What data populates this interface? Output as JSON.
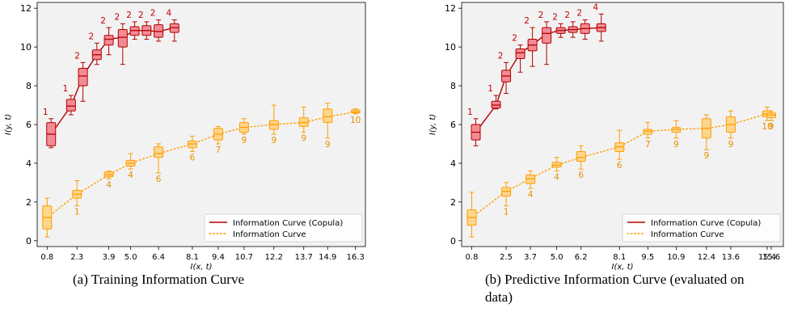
{
  "captions": {
    "a": "(a) Training Information Curve",
    "b_line1": "(b) Predictive Information Curve (evaluated on",
    "b_line2": "data)"
  },
  "colors": {
    "copula_line": "#b30000",
    "copula_box_fill": "#f38b94",
    "copula_label": "#c00000",
    "info_line": "#ff9d00",
    "info_box_fill": "#fed68d",
    "info_label": "#e69000",
    "plot_bg": "#f2f2f2"
  },
  "chart_data": [
    {
      "type": "box",
      "xlabel": "I(x, t)",
      "ylabel": "I(y, t)",
      "ylim": [
        -0.3,
        12.3
      ],
      "yticks": [
        0,
        2,
        4,
        6,
        8,
        10,
        12
      ],
      "xlim": [
        0.3,
        16.8
      ],
      "xticks": [
        0.8,
        2.3,
        3.9,
        5.0,
        6.4,
        8.1,
        9.4,
        10.7,
        12.2,
        13.7,
        14.9,
        16.3
      ],
      "xtick_labels": [
        "0.8",
        "2.3",
        "3.9",
        "5.0",
        "6.4",
        "8.1",
        "9.4",
        "10.7",
        "12.2",
        "13.7",
        "14.9",
        "16.3"
      ],
      "legend": {
        "position": "bottom-right",
        "entries": [
          "Information Curve (Copula)",
          "Information Curve"
        ]
      },
      "series": [
        {
          "name": "Information Curve (Copula)",
          "style": "solid",
          "boxes": [
            {
              "x": 1.0,
              "whislo": 4.8,
              "q1": 4.9,
              "med": 5.5,
              "q3": 6.1,
              "whishi": 6.3,
              "label": "1"
            },
            {
              "x": 2.0,
              "whislo": 6.5,
              "q1": 6.7,
              "med": 6.95,
              "q3": 7.3,
              "whishi": 7.5,
              "label": "1"
            },
            {
              "x": 2.6,
              "whislo": 7.2,
              "q1": 8.0,
              "med": 8.5,
              "q3": 8.9,
              "whishi": 9.2,
              "label": "2"
            },
            {
              "x": 3.3,
              "whislo": 9.1,
              "q1": 9.35,
              "med": 9.6,
              "q3": 9.85,
              "whishi": 10.2,
              "label": "2"
            },
            {
              "x": 3.9,
              "whislo": 9.6,
              "q1": 10.1,
              "med": 10.4,
              "q3": 10.6,
              "whishi": 11.0,
              "label": "2"
            },
            {
              "x": 4.6,
              "whislo": 9.1,
              "q1": 10.0,
              "med": 10.5,
              "q3": 10.9,
              "whishi": 11.2,
              "label": "2"
            },
            {
              "x": 5.2,
              "whislo": 10.4,
              "q1": 10.6,
              "med": 10.85,
              "q3": 11.05,
              "whishi": 11.3,
              "label": "2"
            },
            {
              "x": 5.8,
              "whislo": 10.4,
              "q1": 10.6,
              "med": 10.85,
              "q3": 11.1,
              "whishi": 11.3,
              "label": "2"
            },
            {
              "x": 6.4,
              "whislo": 10.3,
              "q1": 10.5,
              "med": 10.8,
              "q3": 11.15,
              "whishi": 11.4,
              "label": "2"
            },
            {
              "x": 7.2,
              "whislo": 10.3,
              "q1": 10.75,
              "med": 11.0,
              "q3": 11.2,
              "whishi": 11.4,
              "label": "4"
            }
          ]
        },
        {
          "name": "Information Curve",
          "style": "dotted",
          "boxes": [
            {
              "x": 0.8,
              "whislo": 0.2,
              "q1": 0.6,
              "med": 1.2,
              "q3": 1.8,
              "whishi": 2.2,
              "label": ""
            },
            {
              "x": 2.3,
              "whislo": 1.8,
              "q1": 2.2,
              "med": 2.4,
              "q3": 2.6,
              "whishi": 3.1,
              "label": "1"
            },
            {
              "x": 3.9,
              "whislo": 3.2,
              "q1": 3.3,
              "med": 3.4,
              "q3": 3.55,
              "whishi": 3.6,
              "label": "4"
            },
            {
              "x": 5.0,
              "whislo": 3.7,
              "q1": 3.85,
              "med": 4.0,
              "q3": 4.15,
              "whishi": 4.5,
              "label": "4"
            },
            {
              "x": 6.4,
              "whislo": 3.5,
              "q1": 4.3,
              "med": 4.5,
              "q3": 4.85,
              "whishi": 5.0,
              "label": "6"
            },
            {
              "x": 8.1,
              "whislo": 4.6,
              "q1": 4.8,
              "med": 5.0,
              "q3": 5.15,
              "whishi": 5.4,
              "label": "6"
            },
            {
              "x": 9.4,
              "whislo": 5.0,
              "q1": 5.2,
              "med": 5.5,
              "q3": 5.8,
              "whishi": 5.9,
              "label": "7"
            },
            {
              "x": 10.7,
              "whislo": 5.5,
              "q1": 5.6,
              "med": 5.85,
              "q3": 6.1,
              "whishi": 6.3,
              "label": "9"
            },
            {
              "x": 12.2,
              "whislo": 5.5,
              "q1": 5.75,
              "med": 6.0,
              "q3": 6.2,
              "whishi": 7.0,
              "label": "9"
            },
            {
              "x": 13.7,
              "whislo": 5.6,
              "q1": 5.9,
              "med": 6.1,
              "q3": 6.35,
              "whishi": 6.9,
              "label": "9"
            },
            {
              "x": 14.9,
              "whislo": 5.3,
              "q1": 6.1,
              "med": 6.4,
              "q3": 6.8,
              "whishi": 7.1,
              "label": "9"
            },
            {
              "x": 16.3,
              "whislo": 6.55,
              "q1": 6.6,
              "med": 6.65,
              "q3": 6.75,
              "whishi": 6.8,
              "label": "10"
            }
          ]
        }
      ]
    },
    {
      "type": "box",
      "xlabel": "I(x, t)",
      "ylabel": "I(y, t)",
      "ylim": [
        -0.3,
        12.3
      ],
      "yticks": [
        0,
        2,
        4,
        6,
        8,
        10,
        12
      ],
      "xlim": [
        0.3,
        16.2
      ],
      "xticks": [
        0.8,
        2.5,
        3.7,
        5.0,
        6.2,
        8.1,
        9.5,
        10.9,
        12.4,
        13.6,
        15.4,
        15.6
      ],
      "xtick_labels": [
        "0.8",
        "2.5",
        "3.7",
        "5.0",
        "6.2",
        "8.1",
        "9.5",
        "10.9",
        "12.4",
        "13.6",
        "15.4",
        "15.6"
      ],
      "legend": {
        "position": "bottom-right",
        "entries": [
          "Information Curve (Copula)",
          "Information Curve"
        ]
      },
      "series": [
        {
          "name": "Information Curve (Copula)",
          "style": "solid",
          "boxes": [
            {
              "x": 1.0,
              "whislo": 4.9,
              "q1": 5.2,
              "med": 5.6,
              "q3": 6.0,
              "whishi": 6.3,
              "label": "1"
            },
            {
              "x": 2.0,
              "whislo": 6.8,
              "q1": 6.85,
              "med": 7.0,
              "q3": 7.2,
              "whishi": 7.5,
              "label": "1"
            },
            {
              "x": 2.5,
              "whislo": 7.6,
              "q1": 8.2,
              "med": 8.5,
              "q3": 8.8,
              "whishi": 9.2,
              "label": "2"
            },
            {
              "x": 3.2,
              "whislo": 8.7,
              "q1": 9.4,
              "med": 9.7,
              "q3": 9.9,
              "whishi": 10.1,
              "label": "2"
            },
            {
              "x": 3.8,
              "whislo": 9.0,
              "q1": 9.8,
              "med": 10.1,
              "q3": 10.4,
              "whishi": 11.0,
              "label": "2"
            },
            {
              "x": 4.5,
              "whislo": 9.1,
              "q1": 10.2,
              "med": 10.7,
              "q3": 11.0,
              "whishi": 11.3,
              "label": "2"
            },
            {
              "x": 5.2,
              "whislo": 10.5,
              "q1": 10.7,
              "med": 10.85,
              "q3": 11.0,
              "whishi": 11.2,
              "label": "2"
            },
            {
              "x": 5.8,
              "whislo": 10.5,
              "q1": 10.75,
              "med": 10.9,
              "q3": 11.05,
              "whishi": 11.3,
              "label": "2"
            },
            {
              "x": 6.4,
              "whislo": 10.4,
              "q1": 10.7,
              "med": 10.95,
              "q3": 11.2,
              "whishi": 11.4,
              "label": "2"
            },
            {
              "x": 7.2,
              "whislo": 10.3,
              "q1": 10.8,
              "med": 11.0,
              "q3": 11.2,
              "whishi": 11.7,
              "label": "4"
            }
          ]
        },
        {
          "name": "Information Curve",
          "style": "dotted",
          "boxes": [
            {
              "x": 0.8,
              "whislo": 0.2,
              "q1": 0.8,
              "med": 1.2,
              "q3": 1.6,
              "whishi": 2.5,
              "label": ""
            },
            {
              "x": 2.5,
              "whislo": 1.8,
              "q1": 2.3,
              "med": 2.55,
              "q3": 2.75,
              "whishi": 3.0,
              "label": "1"
            },
            {
              "x": 3.7,
              "whislo": 2.7,
              "q1": 2.95,
              "med": 3.2,
              "q3": 3.4,
              "whishi": 3.6,
              "label": "4"
            },
            {
              "x": 5.0,
              "whislo": 3.6,
              "q1": 3.8,
              "med": 3.9,
              "q3": 4.05,
              "whishi": 4.3,
              "label": "4"
            },
            {
              "x": 6.2,
              "whislo": 3.7,
              "q1": 4.1,
              "med": 4.3,
              "q3": 4.6,
              "whishi": 4.9,
              "label": "6"
            },
            {
              "x": 8.1,
              "whislo": 4.2,
              "q1": 4.6,
              "med": 4.85,
              "q3": 5.05,
              "whishi": 5.7,
              "label": "6"
            },
            {
              "x": 9.5,
              "whislo": 5.3,
              "q1": 5.5,
              "med": 5.65,
              "q3": 5.75,
              "whishi": 6.1,
              "label": "7"
            },
            {
              "x": 10.9,
              "whislo": 5.3,
              "q1": 5.6,
              "med": 5.75,
              "q3": 5.85,
              "whishi": 6.2,
              "label": "9"
            },
            {
              "x": 12.4,
              "whislo": 4.7,
              "q1": 5.3,
              "med": 5.8,
              "q3": 6.3,
              "whishi": 6.5,
              "label": "9"
            },
            {
              "x": 13.6,
              "whislo": 5.3,
              "q1": 5.6,
              "med": 6.0,
              "q3": 6.4,
              "whishi": 6.7,
              "label": "9"
            },
            {
              "x": 15.4,
              "whislo": 6.2,
              "q1": 6.4,
              "med": 6.55,
              "q3": 6.7,
              "whishi": 6.9,
              "label": "10"
            },
            {
              "x": 15.6,
              "whislo": 6.2,
              "q1": 6.35,
              "med": 6.5,
              "q3": 6.6,
              "whishi": 6.7,
              "label": "9"
            }
          ]
        }
      ]
    }
  ]
}
